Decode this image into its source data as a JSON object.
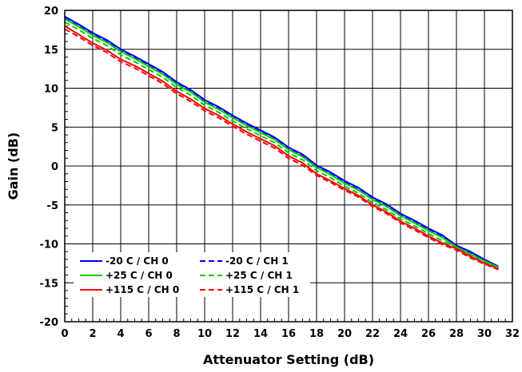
{
  "chart_data": {
    "type": "line",
    "title": "",
    "xlabel": "Attenuator Setting (dB)",
    "ylabel": "Gain (dB)",
    "xlim": [
      0,
      32
    ],
    "ylim": [
      -20,
      20
    ],
    "x_ticks": [
      0,
      2,
      4,
      6,
      8,
      10,
      12,
      14,
      16,
      18,
      20,
      22,
      24,
      26,
      28,
      30,
      32
    ],
    "y_ticks": [
      -20,
      -15,
      -10,
      -5,
      0,
      5,
      10,
      15,
      20
    ],
    "x_tick_labels": [
      "0",
      "2",
      "4",
      "6",
      "8",
      "10",
      "12",
      "14",
      "16",
      "18",
      "20",
      "22",
      "24",
      "26",
      "28",
      "30",
      "32"
    ],
    "y_tick_labels": [
      "-20",
      "-15",
      "-10",
      "-5",
      "0",
      "5",
      "10",
      "15",
      "20"
    ],
    "grid": true,
    "legend_position": "bottom-left",
    "x": [
      0,
      1,
      2,
      3,
      4,
      5,
      6,
      7,
      8,
      9,
      10,
      11,
      12,
      13,
      14,
      15,
      16,
      17,
      18,
      19,
      20,
      21,
      22,
      23,
      24,
      25,
      26,
      27,
      28,
      29,
      30,
      31
    ],
    "series": [
      {
        "name": "-20 C / CH 0",
        "color": "#0000ff",
        "dash": "solid",
        "values": [
          19.2,
          18.2,
          17.1,
          16.2,
          15.0,
          14.1,
          13.1,
          12.1,
          10.8,
          9.8,
          8.5,
          7.6,
          6.5,
          5.5,
          4.6,
          3.7,
          2.4,
          1.5,
          0.1,
          -0.8,
          -1.9,
          -2.8,
          -4.0,
          -4.9,
          -6.1,
          -7.0,
          -8.0,
          -8.9,
          -10.2,
          -11.0,
          -12.0,
          -12.9
        ]
      },
      {
        "name": "-20 C / CH 1",
        "color": "#0000ff",
        "dash": "dashed",
        "values": [
          19.0,
          18.0,
          16.9,
          16.0,
          14.8,
          13.9,
          12.9,
          11.9,
          10.6,
          9.6,
          8.3,
          7.4,
          6.3,
          5.3,
          4.4,
          3.5,
          2.2,
          1.3,
          -0.1,
          -1.0,
          -2.1,
          -3.0,
          -4.2,
          -5.1,
          -6.3,
          -7.2,
          -8.2,
          -9.1,
          -10.4,
          -11.2,
          -12.2,
          -13.0
        ]
      },
      {
        "name": "+25 C / CH 0",
        "color": "#00cc00",
        "dash": "solid",
        "values": [
          18.9,
          17.9,
          16.8,
          15.9,
          14.7,
          13.8,
          12.8,
          11.8,
          10.5,
          9.5,
          8.2,
          7.3,
          6.2,
          5.2,
          4.3,
          3.4,
          2.1,
          1.2,
          -0.2,
          -1.1,
          -2.2,
          -3.1,
          -4.3,
          -5.2,
          -6.4,
          -7.3,
          -8.3,
          -9.2,
          -10.4,
          -11.3,
          -12.2,
          -13.0
        ]
      },
      {
        "name": "+25 C / CH 1",
        "color": "#00cc00",
        "dash": "dashed",
        "values": [
          18.5,
          17.5,
          16.4,
          15.5,
          14.3,
          13.4,
          12.4,
          11.4,
          10.1,
          9.1,
          7.8,
          6.9,
          5.8,
          4.8,
          3.9,
          3.0,
          1.7,
          0.8,
          -0.6,
          -1.5,
          -2.6,
          -3.5,
          -4.7,
          -5.6,
          -6.8,
          -7.7,
          -8.7,
          -9.6,
          -10.5,
          -11.5,
          -12.4,
          -13.1
        ]
      },
      {
        "name": "+115 C / CH 0",
        "color": "#ff0000",
        "dash": "solid",
        "values": [
          18.0,
          16.9,
          15.8,
          14.9,
          13.7,
          12.9,
          11.9,
          10.9,
          9.6,
          8.6,
          7.4,
          6.5,
          5.4,
          4.4,
          3.5,
          2.6,
          1.3,
          0.4,
          -1.0,
          -1.9,
          -2.9,
          -3.8,
          -5.0,
          -5.9,
          -7.1,
          -8.0,
          -9.0,
          -9.9,
          -10.6,
          -11.6,
          -12.5,
          -13.2
        ]
      },
      {
        "name": "+115 C / CH 1",
        "color": "#ff0000",
        "dash": "dashed",
        "values": [
          17.6,
          16.6,
          15.5,
          14.6,
          13.4,
          12.6,
          11.6,
          10.6,
          9.3,
          8.3,
          7.1,
          6.2,
          5.1,
          4.1,
          3.2,
          2.3,
          1.0,
          0.1,
          -1.2,
          -2.1,
          -3.1,
          -4.0,
          -5.2,
          -6.1,
          -7.3,
          -8.2,
          -9.2,
          -10.1,
          -10.8,
          -11.8,
          -12.6,
          -13.3
        ]
      }
    ]
  }
}
